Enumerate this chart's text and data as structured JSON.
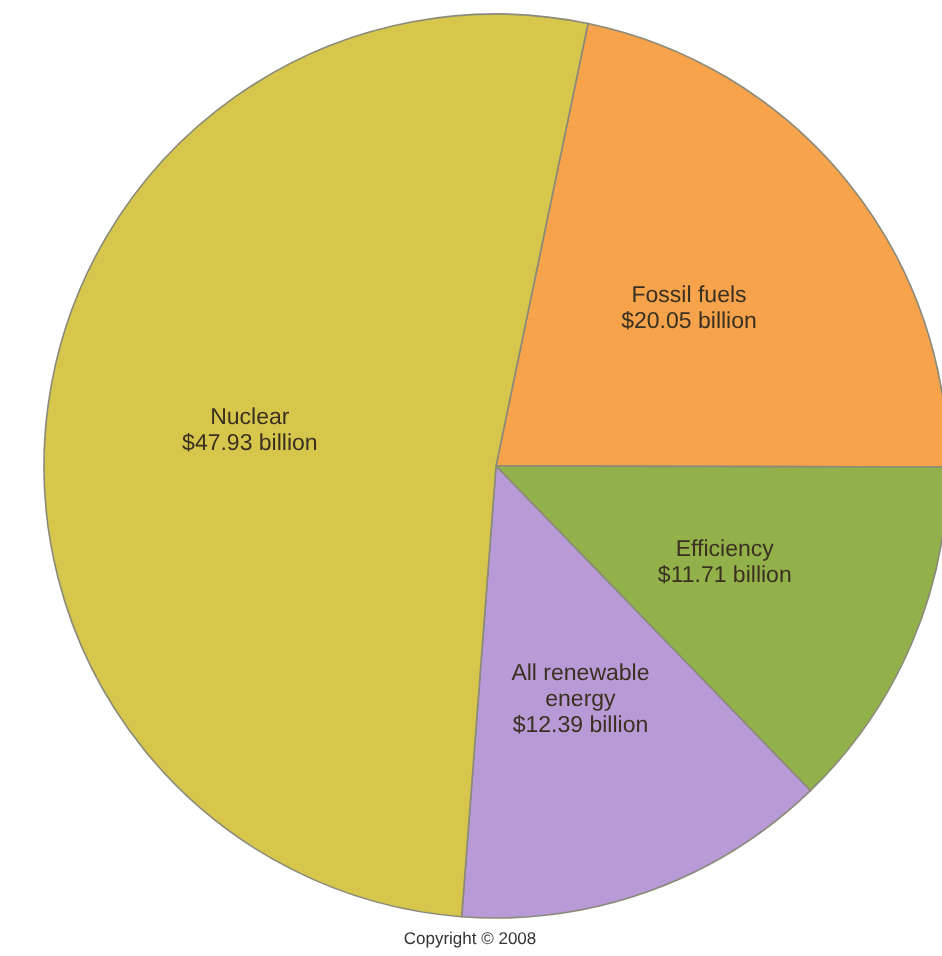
{
  "chart_data": {
    "type": "pie",
    "categories": [
      "Fossil fuels",
      "Efficiency",
      "All renewable energy",
      "Nuclear"
    ],
    "values": [
      20.05,
      11.71,
      12.39,
      47.93
    ],
    "colors": [
      "#f6a34c",
      "#93b14a",
      "#b79ad6",
      "#d6c64c"
    ],
    "value_labels": [
      "$20.05 billion",
      "$11.71 billion",
      "$12.39 billion",
      "$47.93 billion"
    ],
    "annotations": [
      "Copyright © 2008"
    ]
  }
}
